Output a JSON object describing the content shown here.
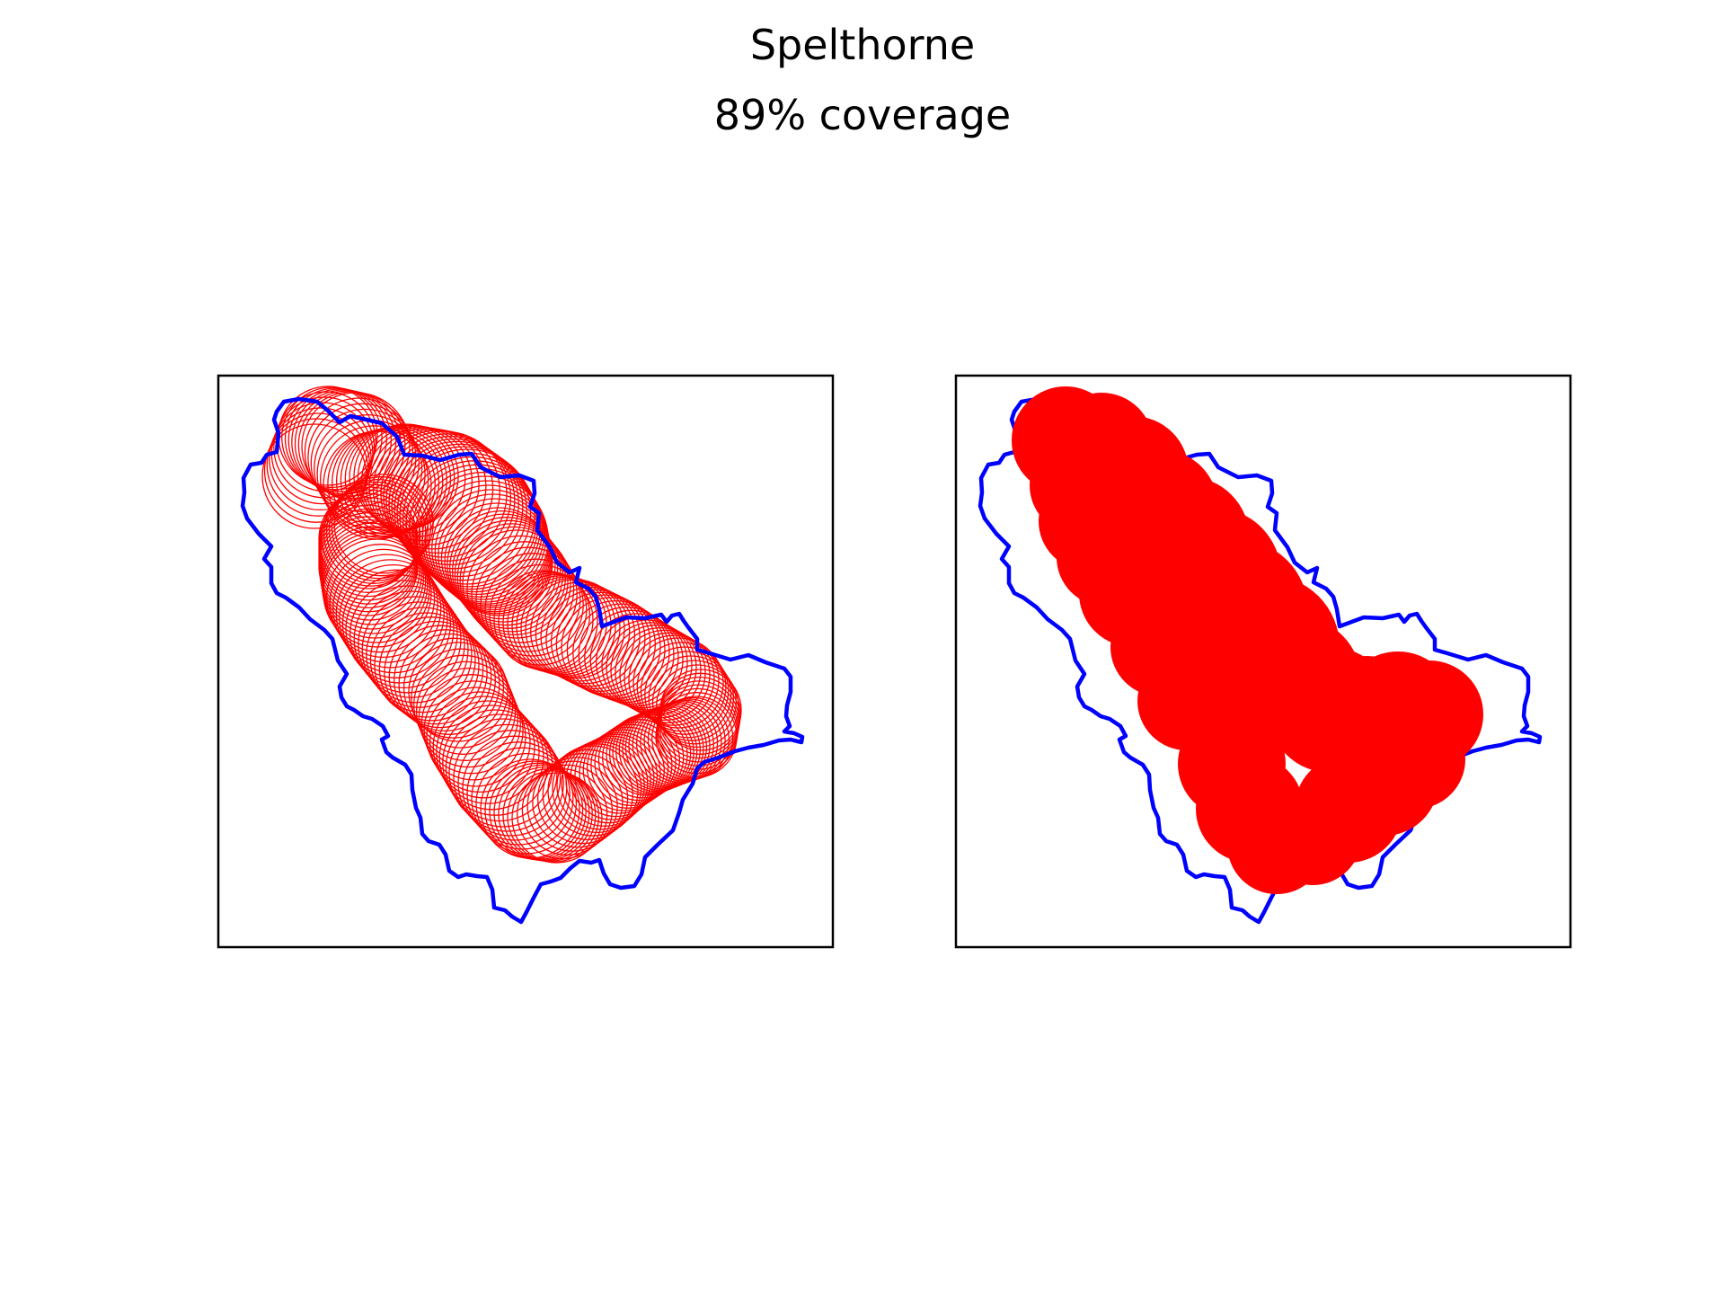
{
  "figure": {
    "title": "Spelthorne",
    "subtitle": "89% coverage"
  },
  "colors": {
    "boundary": "#0000ff",
    "coverage": "#ff0000",
    "frame": "#000000",
    "background": "#ffffff"
  },
  "panels": [
    {
      "name": "circle-outlines",
      "style": "outline"
    },
    {
      "name": "filled-coverage",
      "style": "filled"
    }
  ]
}
